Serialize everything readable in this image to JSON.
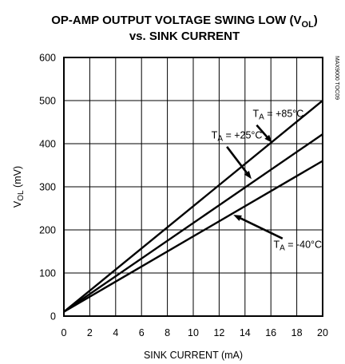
{
  "chart_data": {
    "type": "line",
    "title": {
      "line1_prefix": "OP-AMP OUTPUT VOLTAGE SWING LOW (V",
      "line1_sub": "OL",
      "line1_suffix": ")",
      "line2": "vs. SINK CURRENT"
    },
    "xlabel": "SINK CURRENT (mA)",
    "ylabel": {
      "prefix": "V",
      "sub": "OL",
      "suffix": " (mV)"
    },
    "xlim": [
      0,
      20
    ],
    "ylim": [
      0,
      600
    ],
    "x_ticks": [
      0,
      2,
      4,
      6,
      8,
      10,
      12,
      14,
      16,
      18,
      20
    ],
    "y_ticks": [
      0,
      100,
      200,
      300,
      400,
      500,
      600
    ],
    "grid": true,
    "code": "MAX9000 TOC09",
    "series": [
      {
        "name": "TA = +85°C",
        "x": [
          0,
          20
        ],
        "y": [
          10,
          500
        ]
      },
      {
        "name": "TA = +25°C",
        "x": [
          0,
          20
        ],
        "y": [
          10,
          422
        ]
      },
      {
        "name": "TA = -40°C",
        "x": [
          0,
          20
        ],
        "y": [
          10,
          360
        ]
      }
    ],
    "annotations": [
      {
        "series": "TA = +85°C",
        "prefix": "T",
        "sub": "A",
        "suffix": " = +85°C",
        "label_x": 14.6,
        "label_y": 462,
        "arrow_from": [
          14.9,
          443
        ],
        "arrow_to": [
          16.1,
          402
        ]
      },
      {
        "series": "TA = +25°C",
        "prefix": "T",
        "sub": "A",
        "suffix": " = +25°C",
        "label_x": 11.4,
        "label_y": 412,
        "arrow_from": [
          12.6,
          393
        ],
        "arrow_to": [
          14.5,
          318
        ]
      },
      {
        "series": "TA = -40°C",
        "prefix": "T",
        "sub": "A",
        "suffix": " = -40°C",
        "label_x": 16.2,
        "label_y": 158,
        "arrow_from": [
          16.9,
          180
        ],
        "arrow_to": [
          13.1,
          235
        ]
      }
    ]
  }
}
